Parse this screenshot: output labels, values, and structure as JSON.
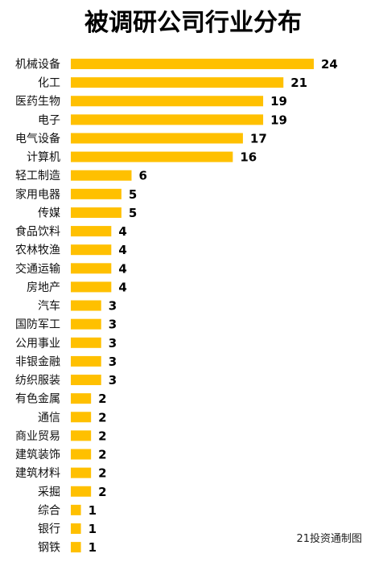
{
  "chart_data": {
    "type": "bar",
    "orientation": "horizontal",
    "title": "被调研公司行业分布",
    "xlabel": "",
    "ylabel": "",
    "xlim": [
      0,
      24
    ],
    "grid": false,
    "legend": "none",
    "bar_color": "#FFC000",
    "categories": [
      "机械设备",
      "化工",
      "医药生物",
      "电子",
      "电气设备",
      "计算机",
      "轻工制造",
      "家用电器",
      "传媒",
      "食品饮料",
      "农林牧渔",
      "交通运输",
      "房地产",
      "汽车",
      "国防军工",
      "公用事业",
      "非银金融",
      "纺织服装",
      "有色金属",
      "通信",
      "商业贸易",
      "建筑装饰",
      "建筑材料",
      "采掘",
      "综合",
      "银行",
      "钢铁"
    ],
    "values": [
      24,
      21,
      19,
      19,
      17,
      16,
      6,
      5,
      5,
      4,
      4,
      4,
      4,
      3,
      3,
      3,
      3,
      3,
      2,
      2,
      2,
      2,
      2,
      2,
      1,
      1,
      1
    ],
    "source": "21投资通制图"
  }
}
